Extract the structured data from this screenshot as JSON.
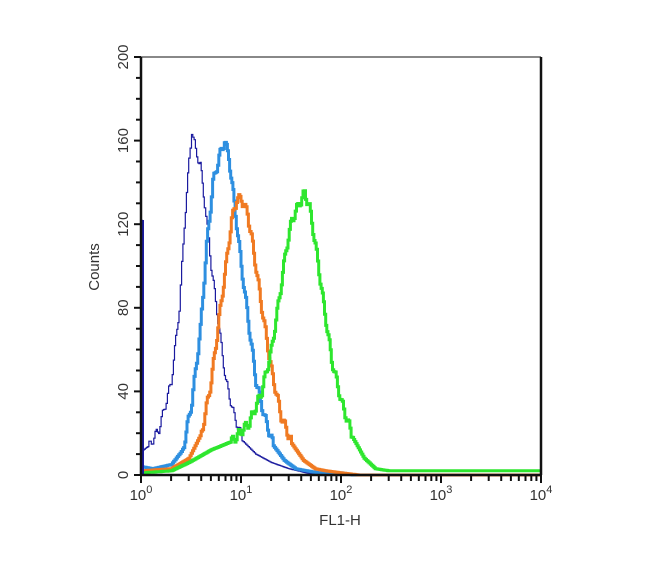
{
  "chart_data": {
    "type": "line",
    "subtype": "flow-cytometry-histogram",
    "title": "",
    "xlabel": "FL1-H",
    "ylabel": "Counts",
    "xscale": "log",
    "xlim": [
      1,
      10000
    ],
    "ylim": [
      0,
      200
    ],
    "x_ticks": [
      {
        "base": "10",
        "exp": "0"
      },
      {
        "base": "10",
        "exp": "1"
      },
      {
        "base": "10",
        "exp": "2"
      },
      {
        "base": "10",
        "exp": "3"
      },
      {
        "base": "10",
        "exp": "4"
      }
    ],
    "y_ticks": [
      "0",
      "40",
      "80",
      "120",
      "160",
      "200"
    ],
    "legend": "none",
    "grid": false,
    "series": [
      {
        "name": "dark-blue",
        "color": "#1a1a9e",
        "stroke_width": 1.2,
        "points": [
          [
            1.0,
            122
          ],
          [
            1.02,
            64
          ],
          [
            1.05,
            12
          ],
          [
            1.2,
            14
          ],
          [
            1.5,
            22
          ],
          [
            2.0,
            45
          ],
          [
            2.4,
            80
          ],
          [
            2.7,
            120
          ],
          [
            3.0,
            150
          ],
          [
            3.2,
            165
          ],
          [
            3.5,
            155
          ],
          [
            3.9,
            148
          ],
          [
            4.3,
            130
          ],
          [
            5.0,
            100
          ],
          [
            6.0,
            70
          ],
          [
            7.0,
            45
          ],
          [
            8.5,
            28
          ],
          [
            10.5,
            16
          ],
          [
            14,
            10
          ],
          [
            20,
            6
          ],
          [
            30,
            3
          ],
          [
            45,
            1
          ],
          [
            60,
            0
          ],
          [
            10000,
            0
          ]
        ]
      },
      {
        "name": "light-blue",
        "color": "#2e8fe0",
        "stroke_width": 3,
        "points": [
          [
            1.0,
            4
          ],
          [
            1.3,
            3
          ],
          [
            2.0,
            5
          ],
          [
            2.6,
            12
          ],
          [
            3.2,
            35
          ],
          [
            3.9,
            70
          ],
          [
            4.5,
            110
          ],
          [
            5.2,
            140
          ],
          [
            6.0,
            152
          ],
          [
            6.8,
            160
          ],
          [
            7.5,
            152
          ],
          [
            8.5,
            130
          ],
          [
            10,
            100
          ],
          [
            12,
            70
          ],
          [
            14,
            45
          ],
          [
            17,
            28
          ],
          [
            21,
            14
          ],
          [
            27,
            7
          ],
          [
            35,
            3
          ],
          [
            45,
            2
          ],
          [
            60,
            1
          ],
          [
            100,
            1
          ],
          [
            130,
            0
          ],
          [
            10000,
            0
          ]
        ]
      },
      {
        "name": "orange",
        "color": "#f07a22",
        "stroke_width": 3,
        "points": [
          [
            1.0,
            2
          ],
          [
            2.0,
            3
          ],
          [
            3.0,
            8
          ],
          [
            4.0,
            20
          ],
          [
            5.0,
            45
          ],
          [
            6.0,
            75
          ],
          [
            7.0,
            100
          ],
          [
            8.0,
            122
          ],
          [
            9.0,
            132
          ],
          [
            10.0,
            132
          ],
          [
            11.5,
            125
          ],
          [
            13,
            110
          ],
          [
            16,
            80
          ],
          [
            20,
            50
          ],
          [
            25,
            28
          ],
          [
            32,
            15
          ],
          [
            42,
            7
          ],
          [
            55,
            3
          ],
          [
            70,
            2
          ],
          [
            100,
            1
          ],
          [
            150,
            0
          ],
          [
            10000,
            0
          ]
        ]
      },
      {
        "name": "green",
        "color": "#2ee62e",
        "stroke_width": 3,
        "points": [
          [
            1.0,
            1
          ],
          [
            2.0,
            2
          ],
          [
            3.0,
            6
          ],
          [
            5.0,
            12
          ],
          [
            8.0,
            16
          ],
          [
            12,
            25
          ],
          [
            16,
            40
          ],
          [
            20,
            60
          ],
          [
            24,
            85
          ],
          [
            28,
            108
          ],
          [
            32,
            122
          ],
          [
            38,
            130
          ],
          [
            43,
            135
          ],
          [
            48,
            128
          ],
          [
            55,
            110
          ],
          [
            65,
            85
          ],
          [
            80,
            55
          ],
          [
            100,
            35
          ],
          [
            130,
            18
          ],
          [
            170,
            8
          ],
          [
            220,
            3
          ],
          [
            300,
            2
          ],
          [
            10000,
            2
          ]
        ]
      }
    ]
  },
  "plot": {
    "frame_color": "#111111",
    "background": "#ffffff"
  }
}
